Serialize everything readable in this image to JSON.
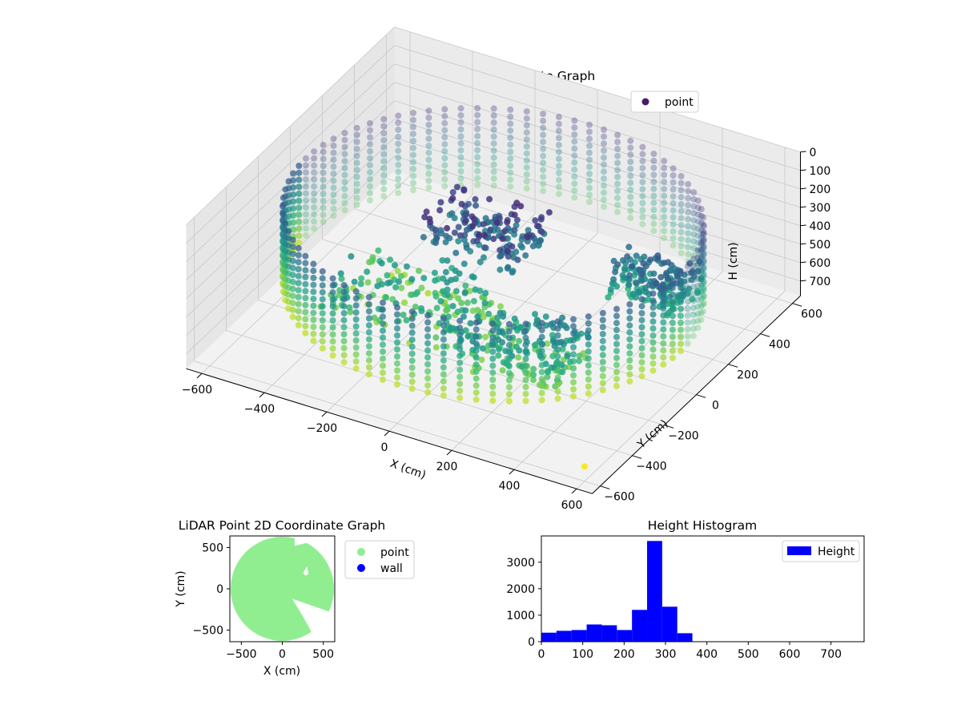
{
  "chart_data": [
    {
      "type": "scatter3d",
      "title": "LiDAR Point 3D Coordinate Graph",
      "xlabel": "X (cm)",
      "ylabel": "Y (cm)",
      "zlabel": "H (cm)",
      "xlim": [
        -650,
        650
      ],
      "ylim": [
        -650,
        650
      ],
      "zlim": [
        0,
        780
      ],
      "z_inverted": true,
      "x_ticks": [
        -600,
        -400,
        -200,
        0,
        200,
        400,
        600
      ],
      "y_ticks": [
        -600,
        -400,
        -200,
        0,
        200,
        400,
        600
      ],
      "z_ticks": [
        0,
        100,
        200,
        300,
        400,
        500,
        600,
        700
      ],
      "colormap": "viridis",
      "legend": {
        "position": "upper-right",
        "entries": [
          {
            "label": "point",
            "color": "#481b6d"
          }
        ]
      },
      "ring": {
        "radius": 600,
        "h_top": 150,
        "h_bottom": 600
      },
      "object_clusters": [
        {
          "x": -60,
          "y": 70,
          "h": 320,
          "extent": 160
        },
        {
          "x": -150,
          "y": -200,
          "h": 500,
          "extent": 220
        },
        {
          "x": 250,
          "y": -300,
          "h": 470,
          "extent": 170
        },
        {
          "x": 430,
          "y": 150,
          "h": 400,
          "extent": 120
        }
      ],
      "grid": true
    },
    {
      "type": "scatter",
      "title": "LiDAR Point 2D Coordinate Graph",
      "xlabel": "X (cm)",
      "ylabel": "Y (cm)",
      "xlim": [
        -640,
        640
      ],
      "ylim": [
        -640,
        640
      ],
      "x_ticks": [
        -500,
        0,
        500
      ],
      "y_ticks": [
        -500,
        0,
        500
      ],
      "legend": {
        "position": "outside-right",
        "entries": [
          {
            "label": "point",
            "color": "#90ee90"
          },
          {
            "label": "wall",
            "color": "#0000ff"
          }
        ]
      },
      "point_region": {
        "radius": 630,
        "center": [
          0,
          0
        ]
      }
    },
    {
      "type": "bar",
      "title": "Height Histogram",
      "series_name": "Height",
      "color": "#0000ff",
      "bin_width": 36.5,
      "bin_start": 0,
      "counts": [
        340,
        410,
        440,
        650,
        620,
        440,
        1200,
        3800,
        1320,
        320,
        0,
        0,
        0,
        0,
        0,
        0,
        0,
        0,
        0,
        0,
        0
      ],
      "xlim": [
        0,
        780
      ],
      "ylim": [
        0,
        3990
      ],
      "x_ticks": [
        0,
        100,
        200,
        300,
        400,
        500,
        600,
        700
      ],
      "y_ticks": [
        0,
        1000,
        2000,
        3000
      ],
      "legend": {
        "position": "upper-right",
        "entries": [
          {
            "label": "Height",
            "color": "#0000ff"
          }
        ]
      }
    }
  ]
}
